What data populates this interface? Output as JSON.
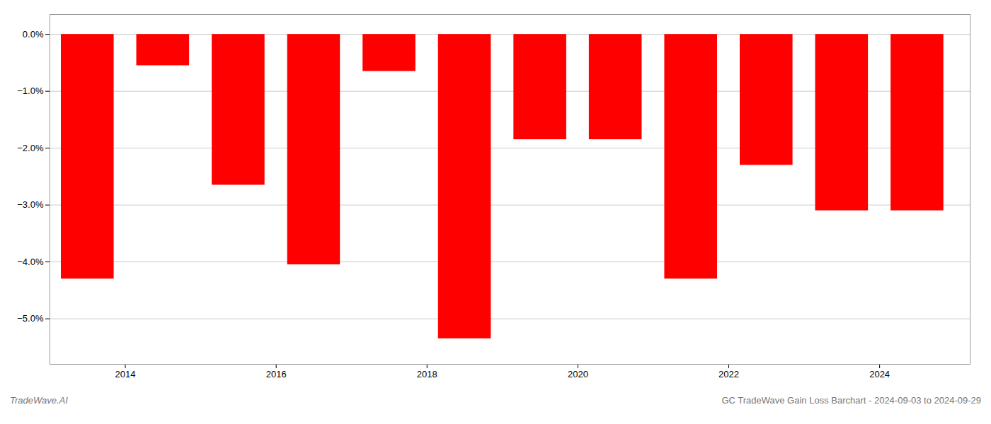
{
  "chart_data": {
    "type": "bar",
    "title": "GC TradeWave Gain Loss Barchart - 2024-09-03 to 2024-09-29",
    "annotations": [
      "TradeWave.AI"
    ],
    "x": [
      2013.5,
      2014.5,
      2015.5,
      2016.5,
      2017.5,
      2018.5,
      2019.5,
      2020.5,
      2021.5,
      2022.5,
      2023.5,
      2024.5
    ],
    "values": [
      -4.3,
      -0.55,
      -2.65,
      -4.05,
      -0.65,
      -5.35,
      -1.85,
      -1.85,
      -4.3,
      -2.3,
      -3.1,
      -3.1
    ],
    "color": "#ff0000",
    "xlim": [
      2013.0,
      2025.2
    ],
    "xticks": [
      2014,
      2016,
      2018,
      2020,
      2022,
      2024
    ],
    "ylim": [
      -5.8,
      0.35
    ],
    "yticks": [
      {
        "value": 0.0,
        "label": "0.0%"
      },
      {
        "value": -1.0,
        "label": "−1.0%"
      },
      {
        "value": -2.0,
        "label": "−2.0%"
      },
      {
        "value": -3.0,
        "label": "−3.0%"
      },
      {
        "value": -4.0,
        "label": "−4.0%"
      },
      {
        "value": -5.0,
        "label": "−5.0%"
      }
    ],
    "grid": true
  }
}
